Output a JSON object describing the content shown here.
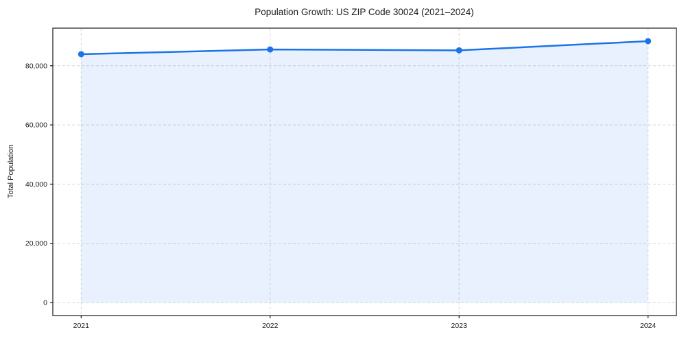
{
  "figure": {
    "background": "#ffffff"
  },
  "chart_data": {
    "type": "area",
    "title": "Population Growth: US ZIP Code 30024 (2021–2024)",
    "xlabel": "",
    "ylabel": "Total Population",
    "x": [
      2021,
      2022,
      2023,
      2024
    ],
    "series": [
      {
        "name": "Total Population",
        "values": [
          83900,
          85500,
          85200,
          88300
        ]
      }
    ],
    "xticks": [
      2021,
      2022,
      2023,
      2024
    ],
    "yticks": [
      0,
      20000,
      40000,
      60000,
      80000
    ],
    "xlim": [
      2020.85,
      2024.15
    ],
    "ylim": [
      -4400,
      92700
    ],
    "grid": true,
    "grid_style": "dashed",
    "legend": "none",
    "colors": {
      "line": "#1a73e8",
      "marker": "#1a73e8",
      "fill": "rgba(26,115,232,0.10)",
      "grid": "#d4d7dc",
      "spine": "#1a1a1a",
      "text": "#1a1a1a"
    }
  }
}
